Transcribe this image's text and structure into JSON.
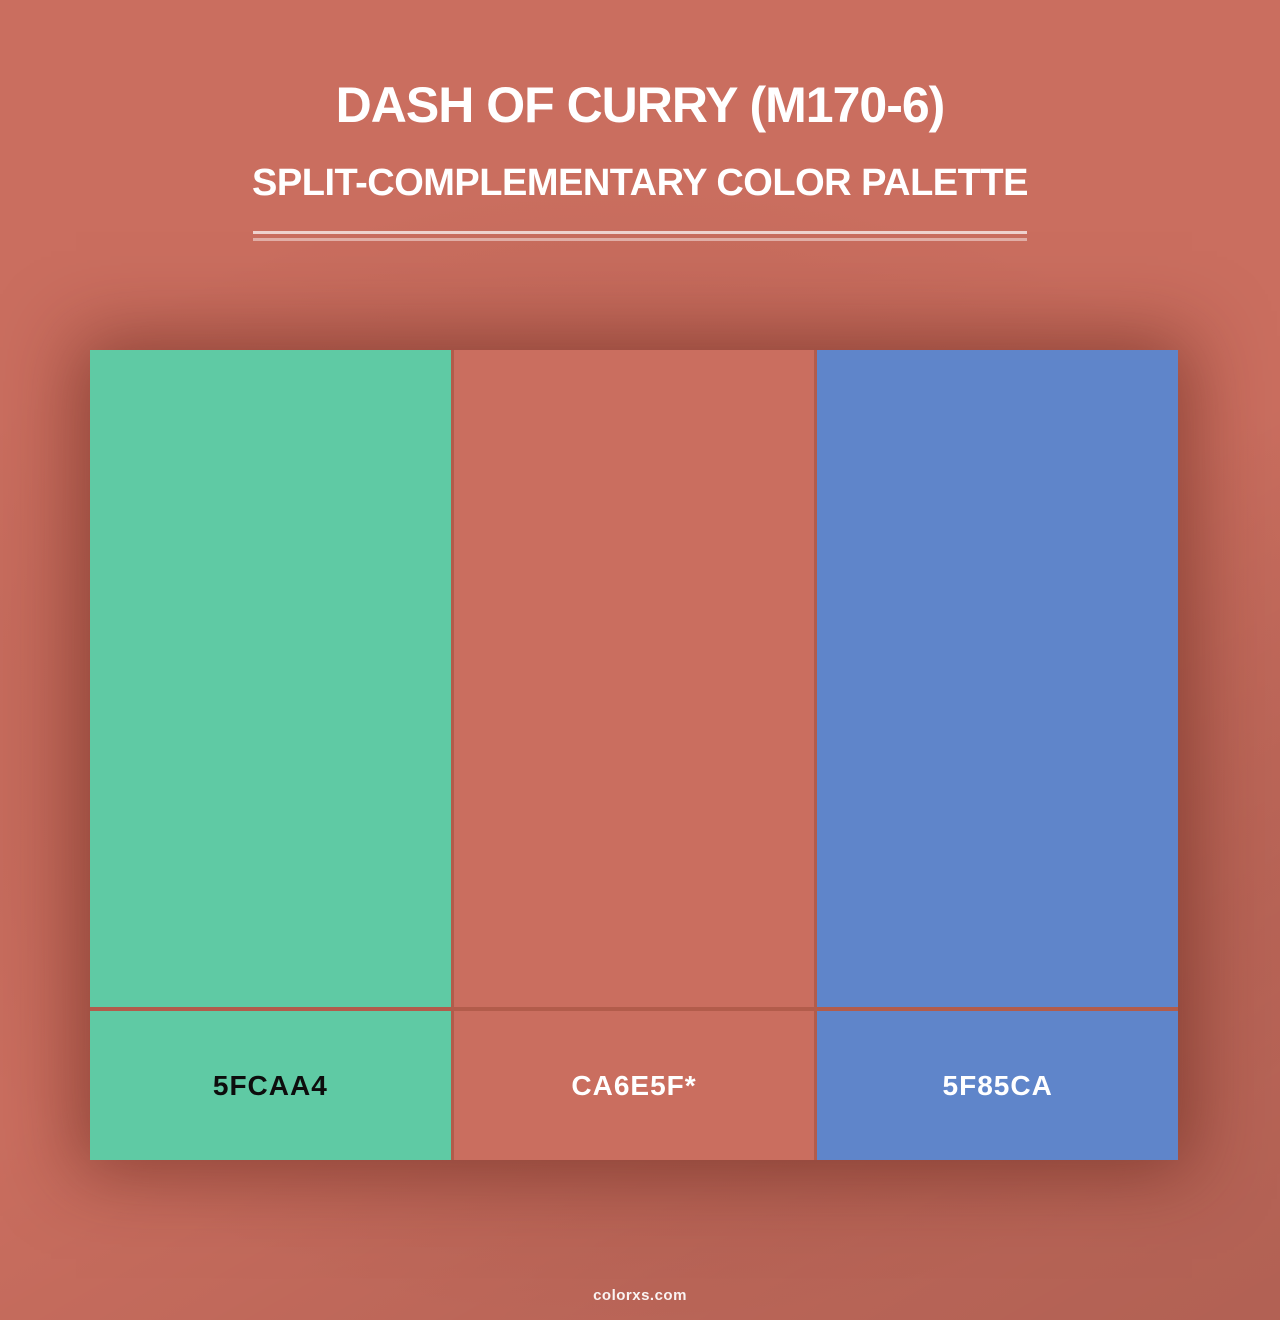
{
  "header": {
    "title": "DASH OF CURRY (M170-6)",
    "subtitle": "SPLIT-COMPLEMENTARY COLOR PALETTE"
  },
  "palette": {
    "swatches": [
      {
        "hex": "5FCAA4",
        "color": "#5FCAA4",
        "label_color": "#0D0D0D"
      },
      {
        "hex": "CA6E5F*",
        "color": "#CA6E5F",
        "label_color": "#FFFFFF"
      },
      {
        "hex": "5F85CA",
        "color": "#5F85CA",
        "label_color": "#FFFFFF"
      }
    ]
  },
  "footer": {
    "watermark": "colorxs.com"
  },
  "theme": {
    "background": "#CA6E5F",
    "gap_line": "#B25C4B",
    "divider": "rgba(255,255,255,0.7)",
    "title_color": "#FFFFFF"
  }
}
